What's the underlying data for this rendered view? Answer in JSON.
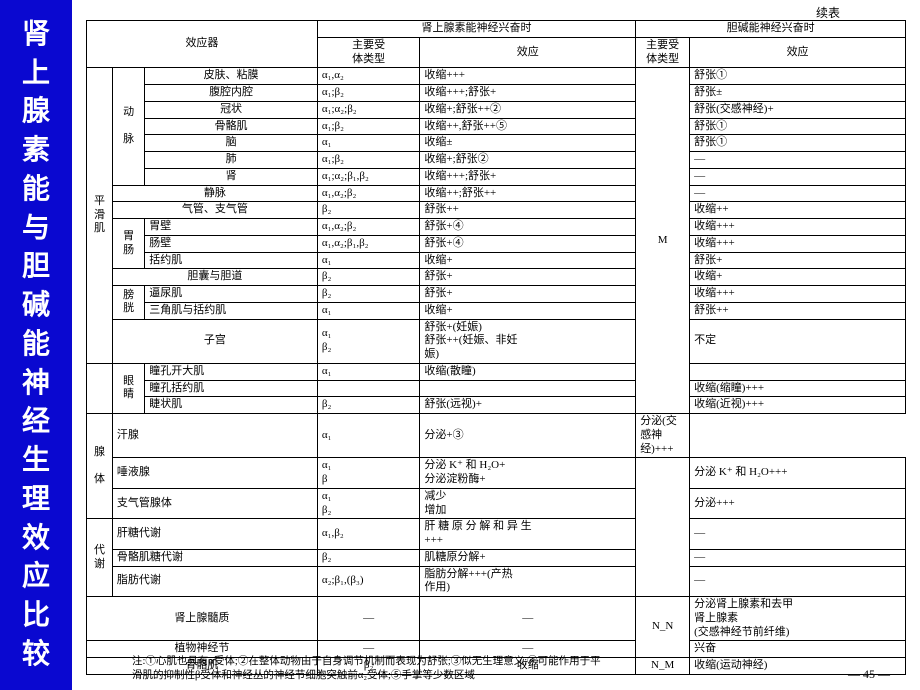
{
  "sidebar_title": "肾上腺素能与胆碱能神经生理效应比较",
  "cont_label": "续表",
  "page_num": "— 45 —",
  "header": {
    "effector": "效应器",
    "adr_title": "肾上腺素能神经兴奋时",
    "ach_title": "胆碱能神经兴奋时",
    "receptor": "主要受\n体类型",
    "effect": "效应"
  },
  "groups": {
    "smooth": "平\n滑\n肌",
    "gland": "腺\n\n体",
    "metab": "代\n谢"
  },
  "subgroups": {
    "artery": "动\n\n脉",
    "gi": "胃\n肠",
    "bladder": "膀\n胱",
    "eye": "眼\n睛"
  },
  "rows": {
    "skin": {
      "n": "皮肤、粘膜",
      "r": "α₁,α₂",
      "e": "收缩+++",
      "c": "舒张①"
    },
    "visc": {
      "n": "腹腔内腔",
      "r": "α₁;β₂",
      "e": "收缩+++;舒张+",
      "c": "舒张±"
    },
    "coron": {
      "n": "冠状",
      "r": "α₁;α₂;β₂",
      "e": "收缩+;舒张++②",
      "c": "舒张(交感神经)+"
    },
    "skel": {
      "n": "骨骼肌",
      "r": "α₁;β₂",
      "e": "收缩++,舒张++⑤",
      "c": "舒张①"
    },
    "brain": {
      "n": "脑",
      "r": "α₁",
      "e": "收缩±",
      "c": "舒张①"
    },
    "lung": {
      "n": "肺",
      "r": "α₁;β₂",
      "e": "收缩+;舒张②",
      "c": "—"
    },
    "kidney": {
      "n": "肾",
      "r": "α₁;α₂;β₁,β₂",
      "e": "收缩+++;舒张+",
      "c": "—"
    },
    "vein": {
      "n": "静脉",
      "r": "α₁,α₂;β₂",
      "e": "收缩++;舒张++",
      "c": "—"
    },
    "bronch": {
      "n": "气管、支气管",
      "r": "β₂",
      "e": "舒张++",
      "c": "收缩++"
    },
    "stomach": {
      "n": "胃壁",
      "r": "α₁,α₂;β₂",
      "e": "舒张+④",
      "c": "收缩+++"
    },
    "intwall": {
      "n": "肠壁",
      "r": "α₁,α₂;β₁,β₂",
      "e": "舒张+④",
      "c": "收缩+++"
    },
    "sphinc": {
      "n": "括约肌",
      "r": "α₁",
      "e": "收缩+",
      "c": "舒张+"
    },
    "gallb": {
      "n": "胆囊与胆道",
      "r": "β₂",
      "e": "舒张+",
      "c": "收缩+"
    },
    "detrus": {
      "n": "逼尿肌",
      "r": "β₂",
      "e": "舒张+",
      "c": "收缩+++"
    },
    "trigone": {
      "n": "三角肌与括约肌",
      "r": "α₁",
      "e": "收缩+",
      "c": "舒张++"
    },
    "uterus": {
      "n": "子宫",
      "r": "α₁\nβ₂",
      "e": "舒张+(妊娠)\n舒张++(妊娠、非妊\n娠)",
      "c": "不定"
    },
    "dilator": {
      "n": "瞳孔开大肌",
      "r": "α₁",
      "e": "收缩(散瞳)"
    },
    "pupsph": {
      "n": "瞳孔括约肌",
      "r": "",
      "e": "",
      "c": "收缩(缩瞳)+++"
    },
    "ciliary": {
      "n": "睫状肌",
      "r": "β₂",
      "e": "舒张(远视)+",
      "c": "收缩(近视)+++"
    },
    "sweat": {
      "n": "汗腺",
      "r": "α₁",
      "e": "分泌+③",
      "c": "分泌(交感神经)+++"
    },
    "saliv": {
      "n": "唾液腺",
      "r": "α₁\nβ",
      "e": "分泌 K⁺ 和 H₂O+\n分泌淀粉酶+",
      "c": "分泌 K⁺ 和 H₂O+++"
    },
    "bgland": {
      "n": "支气管腺体",
      "r": "α₁\nβ₂",
      "e": "减少\n增加",
      "c": "分泌+++"
    },
    "liver": {
      "n": "肝糖代谢",
      "r": "α₁,β₂",
      "e": "肝 糖 原 分 解 和 异 生\n+++",
      "c": "—"
    },
    "muscglc": {
      "n": "骨骼肌糖代谢",
      "r": "β₂",
      "e": "肌糖原分解+",
      "c": "—"
    },
    "fat": {
      "n": "脂肪代谢",
      "r": "α₂;β₁,(β₃)",
      "e": "脂肪分解+++(产热\n作用)",
      "c": "—"
    },
    "medulla": {
      "n": "肾上腺髓质",
      "r": "—",
      "e": "—",
      "c": "分泌肾上腺素和去甲\n肾上腺素\n(交感神经节前纤维)"
    },
    "gangl": {
      "n": "植物神经节",
      "r": "—",
      "e": "—",
      "c": "兴奋"
    },
    "skelmus": {
      "n": "骨骼肌",
      "r": "β₂",
      "e": "收缩",
      "c": "收缩(运动神经)"
    }
  },
  "ach_receptor_M": "M",
  "ach_receptor_NN": "N_N",
  "ach_receptor_NM": "N_M",
  "footnote": "注:①心肌也具有α受体;②在整体动物由于自身调节机制而表现为舒张;③似无生理意义;④可能作用于平\n滑肌的抑制性β受体和神经丛的神经节细胞突触前α₂受体;⑤手掌等少数区域"
}
